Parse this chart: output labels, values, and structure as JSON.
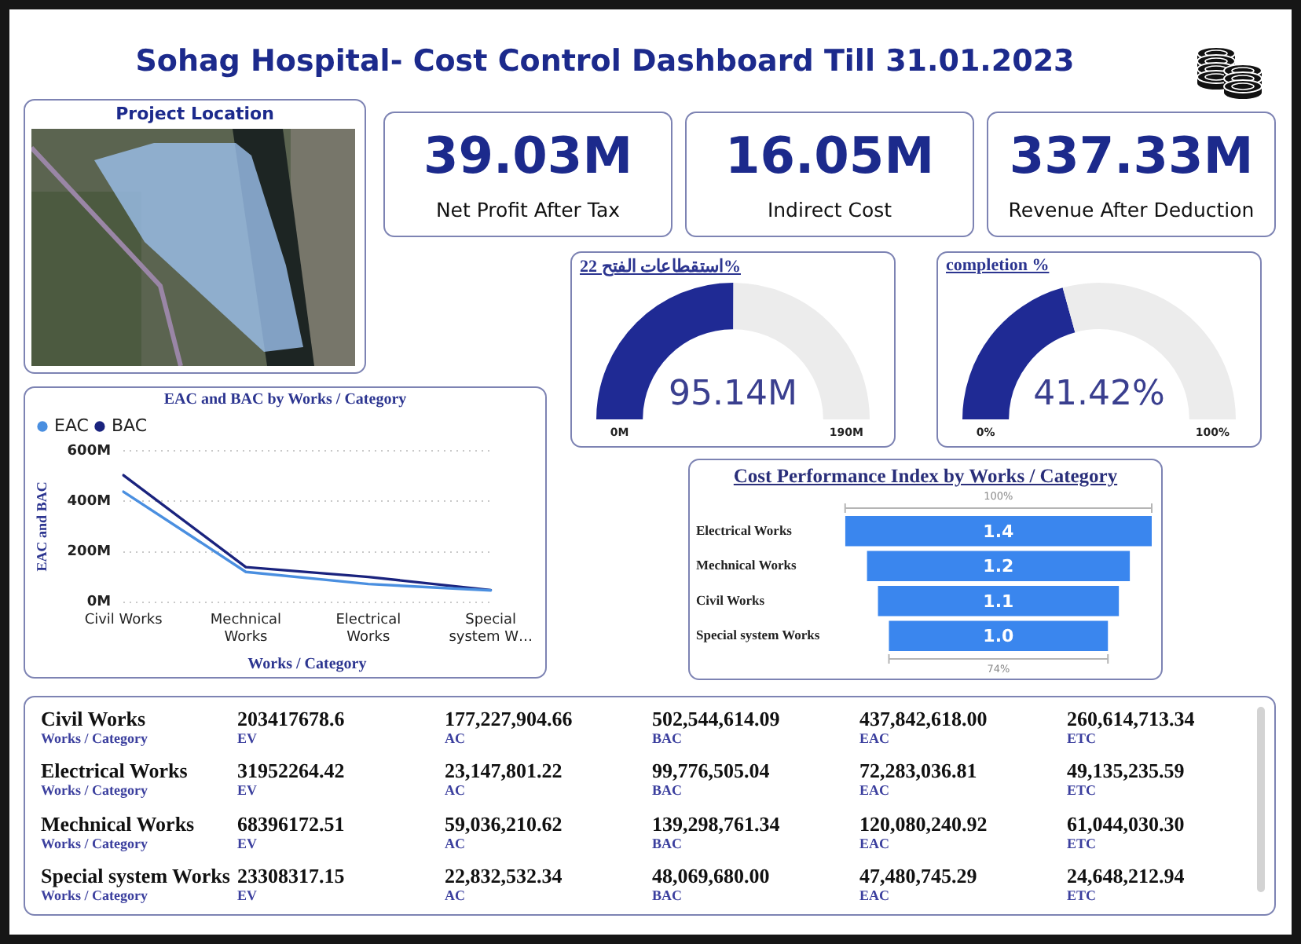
{
  "chart_data": [
    {
      "type": "other",
      "title": "Sohag Hospital- Cost Control Dashboard Till 31.01.2023"
    },
    {
      "type": "other",
      "title": "Project Location"
    },
    {
      "type": "other",
      "categories": [
        "Net Profit After Tax",
        "Indirect Cost",
        "Revenue After Deduction"
      ],
      "values": [
        39.03,
        16.05,
        337.33
      ],
      "value_labels": [
        "39.03M",
        "16.05M",
        "337.33M"
      ]
    },
    {
      "type": "donut",
      "title": "استقطاعات الفتح 22%",
      "categories": [
        null,
        null
      ],
      "values": [
        50.1,
        49.9
      ],
      "colors": [
        "#1f2a94",
        "#ececec"
      ],
      "annotations": [
        "95.14M",
        "0M",
        "190M"
      ]
    },
    {
      "type": "donut",
      "title": "completion %",
      "categories": [
        null,
        null
      ],
      "values": [
        41.42,
        58.58
      ],
      "colors": [
        "#1f2a94",
        "#ececec"
      ],
      "annotations": [
        "41.42%",
        "0%",
        "100%"
      ]
    },
    {
      "type": "line",
      "title": "EAC and BAC by Works / Category",
      "categories": [
        "Civil Works",
        "Mechnical Works",
        "Electrical Works",
        "Special system W…"
      ],
      "xlabel": "Works / Category",
      "ylabel": "EAC and BAC",
      "series": [
        {
          "name": "EAC",
          "color": "#4a8fe0",
          "values": [
            438,
            120,
            72,
            47
          ]
        },
        {
          "name": "BAC",
          "color": "#1a237e",
          "values": [
            503,
            139,
            100,
            48
          ]
        }
      ],
      "ylim": [
        0,
        600
      ],
      "yticks": [
        {
          "value": 0,
          "label": "0M"
        },
        {
          "value": 200,
          "label": "200M"
        },
        {
          "value": 400,
          "label": "400M"
        },
        {
          "value": 600,
          "label": "600M"
        }
      ],
      "grid": "y",
      "legend": "top left",
      "marker": "none"
    },
    {
      "type": "other",
      "title": "Cost Performance Index by Works / Category",
      "categories": [
        "Electrical Works",
        "Mechnical Works",
        "Civil Works",
        "Special system Works"
      ],
      "values": [
        1.4,
        1.2,
        1.1,
        1.0
      ],
      "color": "#3a86ee",
      "value_labels": [
        "1.4",
        "1.2",
        "1.1",
        "1.0"
      ],
      "annotations": [
        "100%",
        "74%"
      ]
    },
    {
      "type": "other",
      "categories": [
        "Civil Works",
        "Electrical Works",
        "Mechnical Works",
        "Special system Works"
      ],
      "xlabel": "Works / Category",
      "series": [
        {
          "name": "EV",
          "values": [
            203417678.6,
            31952264.42,
            68396172.51,
            23308317.15
          ],
          "value_labels": [
            "203417678.6",
            "31952264.42",
            "68396172.51",
            "23308317.15"
          ]
        },
        {
          "name": "AC",
          "values": [
            177227904.66,
            23147801.22,
            59036210.62,
            22832532.34
          ],
          "value_labels": [
            "177,227,904.66",
            "23,147,801.22",
            "59,036,210.62",
            "22,832,532.34"
          ]
        },
        {
          "name": "BAC",
          "values": [
            502544614.09,
            99776505.04,
            139298761.34,
            48069680.0
          ],
          "value_labels": [
            "502,544,614.09",
            "99,776,505.04",
            "139,298,761.34",
            "48,069,680.00"
          ]
        },
        {
          "name": "EAC",
          "values": [
            437842618.0,
            72283036.81,
            120080240.92,
            47480745.29
          ],
          "value_labels": [
            "437,842,618.00",
            "72,283,036.81",
            "120,080,240.92",
            "47,480,745.29"
          ]
        },
        {
          "name": "ETC",
          "values": [
            260614713.34,
            49135235.59,
            61044030.3,
            24648212.94
          ],
          "value_labels": [
            "260,614,713.34",
            "49,135,235.59",
            "61,044,030.30",
            "24,648,212.94"
          ]
        }
      ]
    }
  ]
}
